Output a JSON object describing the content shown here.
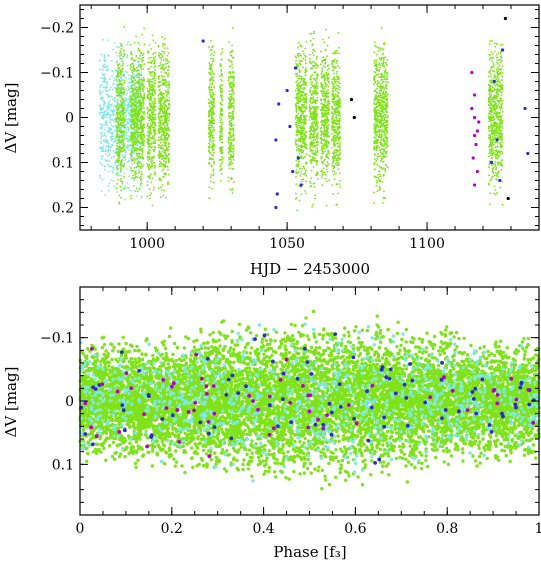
{
  "colors": {
    "dataset_a": "#7fe21a",
    "dataset_b": "#7fe8e0",
    "dataset_c": "#2b2bd6",
    "dataset_d": "#b400c8",
    "dataset_e": "#000000"
  },
  "chart_data": [
    {
      "type": "scatter",
      "title": "",
      "xlabel": "HJD − 2453000",
      "ylabel": "ΔV [mag]",
      "xlim": [
        976,
        1140
      ],
      "ylim": [
        0.25,
        -0.25
      ],
      "xticks": [
        1000,
        1050,
        1100
      ],
      "xtick_labels": [
        "1000",
        "1050",
        "1100"
      ],
      "yticks": [
        -0.2,
        -0.1,
        0,
        0.1,
        0.2
      ],
      "ytick_labels": [
        "−0.2",
        "−0.1",
        "0",
        "0.1",
        "0.2"
      ],
      "grid": false,
      "series": [
        {
          "color_key": "dataset_b",
          "x_segments": [
            [
              983,
              998
            ]
          ],
          "density": 900,
          "yspread": 0.2
        },
        {
          "color_key": "dataset_a",
          "x_segments": [
            [
              989,
              992
            ],
            [
              994,
              999
            ],
            [
              1000,
              1003
            ],
            [
              1004,
              1008
            ],
            [
              1022,
              1024
            ],
            [
              1026,
              1027
            ],
            [
              1029,
              1031
            ],
            [
              1053,
              1057
            ],
            [
              1058,
              1061
            ],
            [
              1062,
              1065
            ],
            [
              1066,
              1069
            ],
            [
              1081,
              1086
            ],
            [
              1122,
              1127
            ]
          ],
          "density": 5200,
          "yspread": 0.22
        },
        {
          "color_key": "dataset_c",
          "points": [
            [
              1046,
              0.05
            ],
            [
              1047,
              -0.03
            ],
            [
              1046.5,
              0.17
            ],
            [
              1050,
              -0.06
            ],
            [
              1051,
              0.02
            ],
            [
              1052,
              0.12
            ],
            [
              1053,
              -0.11
            ],
            [
              1054,
              0.09
            ],
            [
              1055,
              0.15
            ],
            [
              1124,
              -0.08
            ],
            [
              1125,
              0.05
            ],
            [
              1126,
              0.14
            ],
            [
              1127,
              -0.15
            ],
            [
              1123,
              0.1
            ],
            [
              1135,
              -0.02
            ],
            [
              1136,
              0.08
            ],
            [
              1020,
              -0.17
            ],
            [
              1046,
              0.2
            ]
          ]
        },
        {
          "color_key": "dataset_d",
          "points": [
            [
              1116,
              -0.1
            ],
            [
              1117,
              -0.05
            ],
            [
              1117,
              0.0
            ],
            [
              1118,
              0.03
            ],
            [
              1117.5,
              0.06
            ],
            [
              1116.5,
              0.09
            ],
            [
              1118,
              0.12
            ],
            [
              1117,
              0.15
            ],
            [
              1116,
              -0.02
            ],
            [
              1118.5,
              0.01
            ],
            [
              1117,
              0.04
            ]
          ]
        },
        {
          "color_key": "dataset_e",
          "points": [
            [
              1073,
              -0.04
            ],
            [
              1074,
              0.0
            ],
            [
              1128,
              -0.22
            ],
            [
              1129,
              0.18
            ]
          ]
        }
      ]
    },
    {
      "type": "scatter",
      "title": "",
      "xlabel": "Phase [f₃]",
      "ylabel": "ΔV [mag]",
      "xlim": [
        0,
        1
      ],
      "ylim": [
        0.18,
        -0.18
      ],
      "xticks": [
        0,
        0.2,
        0.4,
        0.6,
        0.8,
        1
      ],
      "xtick_labels": [
        "0",
        "0.2",
        "0.4",
        "0.6",
        "0.8",
        "1"
      ],
      "yticks": [
        -0.1,
        0,
        0.1
      ],
      "ytick_labels": [
        "−0.1",
        "0",
        "0.1"
      ],
      "grid": false,
      "series": [
        {
          "color_key": "dataset_a",
          "density": 9000,
          "yspread": 0.13
        },
        {
          "color_key": "dataset_b",
          "density": 900,
          "yspread": 0.13
        },
        {
          "color_key": "dataset_c",
          "density": 90,
          "yspread": 0.12
        },
        {
          "color_key": "dataset_d",
          "density": 60,
          "yspread": 0.12
        }
      ]
    }
  ]
}
